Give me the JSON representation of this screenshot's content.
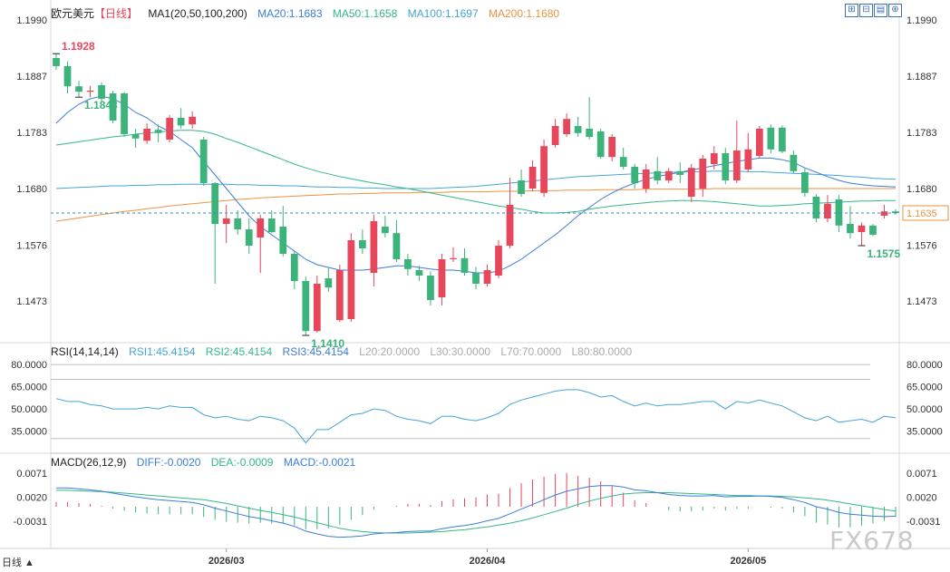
{
  "header": {
    "symbol": "欧元美元",
    "period": "【日线】",
    "ma_label": "MA1(20,50,100,200)",
    "ma20": "MA20:1.1683",
    "ma50": "MA50:1.1658",
    "ma100": "MA100:1.1697",
    "ma200": "MA200:1.1680"
  },
  "rsi_header": {
    "label": "RSI(14,14,14)",
    "rsi1": "RSI1:45.4154",
    "rsi2": "RSI2:45.4154",
    "rsi3": "RSI3:45.4154",
    "l20": "L20:20.0000",
    "l30": "L30:30.0000",
    "l70": "L70:70.0000",
    "l80": "L80:80.0000"
  },
  "macd_header": {
    "label": "MACD(26,12,9)",
    "diff": "DIFF:-0.0020",
    "dea": "DEA:-0.0009",
    "macd": "MACD:-0.0021"
  },
  "toolbar_icons": [
    "zoom-in-icon",
    "zoom-out-icon",
    "chart-type-icon",
    "expand-icon"
  ],
  "footer": {
    "period_selector": "日线 ▲",
    "watermark": "FX678"
  },
  "colors": {
    "up": "#e8465a",
    "down": "#3cb37b",
    "ma20": "#3b7dd8",
    "ma50": "#33b888",
    "ma100": "#45a5d6",
    "ma200": "#ee9240",
    "rsi": "#45a5d6",
    "macd_diff": "#3b7dd8",
    "macd_dea": "#33b888"
  },
  "chart_data": {
    "type": "candlestick",
    "price_axis": {
      "ticks": [
        "1.1990",
        "1.1887",
        "1.1783",
        "1.1680",
        "1.1576",
        "1.1473"
      ],
      "range": [
        1.14,
        1.199
      ]
    },
    "current_price": "1.1635",
    "annotations": [
      {
        "text": "1.1928",
        "value": 1.1928
      },
      {
        "text": "1.1410",
        "value": 1.141
      },
      {
        "text": "1.1848",
        "value": 1.1848
      },
      {
        "text": "1.1575",
        "value": 1.1575
      }
    ],
    "x_labels": [
      "2026/03",
      "2026/04",
      "2026/05"
    ],
    "x_label_index": [
      15,
      38,
      61
    ],
    "candles": [
      {
        "o": 1.192,
        "h": 1.1928,
        "l": 1.1898,
        "c": 1.1905
      },
      {
        "o": 1.1905,
        "h": 1.1914,
        "l": 1.1855,
        "c": 1.1868
      },
      {
        "o": 1.1868,
        "h": 1.1878,
        "l": 1.1848,
        "c": 1.1858
      },
      {
        "o": 1.1858,
        "h": 1.1869,
        "l": 1.1848,
        "c": 1.186
      },
      {
        "o": 1.187,
        "h": 1.1875,
        "l": 1.184,
        "c": 1.1845
      },
      {
        "o": 1.1855,
        "h": 1.186,
        "l": 1.18,
        "c": 1.1805
      },
      {
        "o": 1.1855,
        "h": 1.1857,
        "l": 1.1775,
        "c": 1.178
      },
      {
        "o": 1.178,
        "h": 1.179,
        "l": 1.1755,
        "c": 1.1772
      },
      {
        "o": 1.1768,
        "h": 1.18,
        "l": 1.1762,
        "c": 1.179
      },
      {
        "o": 1.1788,
        "h": 1.1798,
        "l": 1.1765,
        "c": 1.1782
      },
      {
        "o": 1.177,
        "h": 1.1815,
        "l": 1.1765,
        "c": 1.181
      },
      {
        "o": 1.181,
        "h": 1.1828,
        "l": 1.179,
        "c": 1.1796
      },
      {
        "o": 1.1798,
        "h": 1.1822,
        "l": 1.179,
        "c": 1.1812
      },
      {
        "o": 1.177,
        "h": 1.1775,
        "l": 1.1685,
        "c": 1.169
      },
      {
        "o": 1.169,
        "h": 1.1692,
        "l": 1.1505,
        "c": 1.1615
      },
      {
        "o": 1.1615,
        "h": 1.165,
        "l": 1.158,
        "c": 1.1625
      },
      {
        "o": 1.1625,
        "h": 1.164,
        "l": 1.1595,
        "c": 1.1605
      },
      {
        "o": 1.1605,
        "h": 1.1625,
        "l": 1.156,
        "c": 1.1575
      },
      {
        "o": 1.159,
        "h": 1.1632,
        "l": 1.1525,
        "c": 1.1625
      },
      {
        "o": 1.1625,
        "h": 1.164,
        "l": 1.1598,
        "c": 1.16
      },
      {
        "o": 1.161,
        "h": 1.1648,
        "l": 1.1555,
        "c": 1.156
      },
      {
        "o": 1.156,
        "h": 1.1565,
        "l": 1.1495,
        "c": 1.151
      },
      {
        "o": 1.151,
        "h": 1.1518,
        "l": 1.141,
        "c": 1.1418
      },
      {
        "o": 1.1418,
        "h": 1.152,
        "l": 1.1415,
        "c": 1.1505
      },
      {
        "o": 1.1515,
        "h": 1.1535,
        "l": 1.149,
        "c": 1.1498
      },
      {
        "o": 1.1438,
        "h": 1.154,
        "l": 1.1435,
        "c": 1.153
      },
      {
        "o": 1.144,
        "h": 1.1598,
        "l": 1.1435,
        "c": 1.1585
      },
      {
        "o": 1.1585,
        "h": 1.1605,
        "l": 1.156,
        "c": 1.157
      },
      {
        "o": 1.1525,
        "h": 1.1632,
        "l": 1.15,
        "c": 1.162
      },
      {
        "o": 1.161,
        "h": 1.163,
        "l": 1.159,
        "c": 1.1598
      },
      {
        "o": 1.1598,
        "h": 1.1622,
        "l": 1.1545,
        "c": 1.155
      },
      {
        "o": 1.155,
        "h": 1.156,
        "l": 1.152,
        "c": 1.1532
      },
      {
        "o": 1.153,
        "h": 1.1538,
        "l": 1.151,
        "c": 1.152
      },
      {
        "o": 1.152,
        "h": 1.1528,
        "l": 1.1465,
        "c": 1.1475
      },
      {
        "o": 1.148,
        "h": 1.156,
        "l": 1.1465,
        "c": 1.155
      },
      {
        "o": 1.155,
        "h": 1.1572,
        "l": 1.1545,
        "c": 1.1552
      },
      {
        "o": 1.1552,
        "h": 1.157,
        "l": 1.152,
        "c": 1.1525
      },
      {
        "o": 1.1525,
        "h": 1.1536,
        "l": 1.1495,
        "c": 1.1505
      },
      {
        "o": 1.1505,
        "h": 1.154,
        "l": 1.15,
        "c": 1.153
      },
      {
        "o": 1.152,
        "h": 1.1585,
        "l": 1.1515,
        "c": 1.1575
      },
      {
        "o": 1.1575,
        "h": 1.17,
        "l": 1.157,
        "c": 1.165
      },
      {
        "o": 1.1695,
        "h": 1.1715,
        "l": 1.1665,
        "c": 1.167
      },
      {
        "o": 1.168,
        "h": 1.1732,
        "l": 1.1675,
        "c": 1.172
      },
      {
        "o": 1.1672,
        "h": 1.177,
        "l": 1.1665,
        "c": 1.1758
      },
      {
        "o": 1.176,
        "h": 1.1808,
        "l": 1.1755,
        "c": 1.1795
      },
      {
        "o": 1.178,
        "h": 1.1818,
        "l": 1.1775,
        "c": 1.1808
      },
      {
        "o": 1.1795,
        "h": 1.1812,
        "l": 1.1775,
        "c": 1.1782
      },
      {
        "o": 1.179,
        "h": 1.1848,
        "l": 1.177,
        "c": 1.1775
      },
      {
        "o": 1.1785,
        "h": 1.179,
        "l": 1.1735,
        "c": 1.1738
      },
      {
        "o": 1.1738,
        "h": 1.178,
        "l": 1.173,
        "c": 1.1775
      },
      {
        "o": 1.1738,
        "h": 1.1755,
        "l": 1.1715,
        "c": 1.172
      },
      {
        "o": 1.172,
        "h": 1.1725,
        "l": 1.168,
        "c": 1.169
      },
      {
        "o": 1.168,
        "h": 1.1725,
        "l": 1.1672,
        "c": 1.1715
      },
      {
        "o": 1.1712,
        "h": 1.1738,
        "l": 1.1688,
        "c": 1.1695
      },
      {
        "o": 1.1695,
        "h": 1.1718,
        "l": 1.169,
        "c": 1.1712
      },
      {
        "o": 1.1712,
        "h": 1.1728,
        "l": 1.169,
        "c": 1.1705
      },
      {
        "o": 1.1665,
        "h": 1.1725,
        "l": 1.1655,
        "c": 1.1718
      },
      {
        "o": 1.168,
        "h": 1.1742,
        "l": 1.1665,
        "c": 1.1735
      },
      {
        "o": 1.1725,
        "h": 1.1758,
        "l": 1.1715,
        "c": 1.1745
      },
      {
        "o": 1.1745,
        "h": 1.1755,
        "l": 1.1688,
        "c": 1.1695
      },
      {
        "o": 1.1695,
        "h": 1.1805,
        "l": 1.169,
        "c": 1.175
      },
      {
        "o": 1.1715,
        "h": 1.1782,
        "l": 1.171,
        "c": 1.1752
      },
      {
        "o": 1.174,
        "h": 1.1795,
        "l": 1.1735,
        "c": 1.179
      },
      {
        "o": 1.1792,
        "h": 1.1798,
        "l": 1.1745,
        "c": 1.1752
      },
      {
        "o": 1.1792,
        "h": 1.1796,
        "l": 1.1745,
        "c": 1.1748
      },
      {
        "o": 1.1742,
        "h": 1.175,
        "l": 1.1708,
        "c": 1.1712
      },
      {
        "o": 1.171,
        "h": 1.1718,
        "l": 1.1665,
        "c": 1.1672
      },
      {
        "o": 1.1665,
        "h": 1.167,
        "l": 1.1618,
        "c": 1.1625
      },
      {
        "o": 1.1625,
        "h": 1.1668,
        "l": 1.1618,
        "c": 1.1652
      },
      {
        "o": 1.166,
        "h": 1.1668,
        "l": 1.16,
        "c": 1.1612
      },
      {
        "o": 1.1615,
        "h": 1.1648,
        "l": 1.1588,
        "c": 1.1598
      },
      {
        "o": 1.16,
        "h": 1.1618,
        "l": 1.1575,
        "c": 1.1612
      },
      {
        "o": 1.1612,
        "h": 1.1615,
        "l": 1.1592,
        "c": 1.1595
      },
      {
        "o": 1.163,
        "h": 1.165,
        "l": 1.1625,
        "c": 1.1638
      },
      {
        "o": 1.1638,
        "h": 1.1642,
        "l": 1.1632,
        "c": 1.1635
      }
    ],
    "ma20": [
      1.18,
      1.182,
      1.1835,
      1.1845,
      1.185,
      1.1845,
      1.1835,
      1.182,
      1.181,
      1.1795,
      1.1785,
      1.177,
      1.1755,
      1.173,
      1.1705,
      1.168,
      1.1655,
      1.163,
      1.161,
      1.1595,
      1.158,
      1.1565,
      1.155,
      1.154,
      1.1535,
      1.153,
      1.153,
      1.153,
      1.1532,
      1.1535,
      1.1538,
      1.1538,
      1.1535,
      1.1532,
      1.153,
      1.153,
      1.1528,
      1.1525,
      1.1525,
      1.1528,
      1.1538,
      1.155,
      1.1565,
      1.158,
      1.1595,
      1.1612,
      1.163,
      1.1645,
      1.166,
      1.1672,
      1.1682,
      1.169,
      1.1697,
      1.1702,
      1.1706,
      1.171,
      1.1714,
      1.1718,
      1.1722,
      1.1726,
      1.173,
      1.1733,
      1.1736,
      1.1736,
      1.1733,
      1.1728,
      1.1718,
      1.171,
      1.1702,
      1.1695,
      1.169,
      1.1687,
      1.1685,
      1.1684,
      1.1683
    ],
    "ma50": [
      1.176,
      1.1763,
      1.1766,
      1.1769,
      1.1772,
      1.1775,
      1.1777,
      1.178,
      1.1782,
      1.1784,
      1.1786,
      1.1787,
      1.1787,
      1.1785,
      1.178,
      1.1772,
      1.1765,
      1.1757,
      1.1749,
      1.1741,
      1.1733,
      1.1725,
      1.1718,
      1.1712,
      1.1707,
      1.1702,
      1.1698,
      1.1694,
      1.169,
      1.1687,
      1.1683,
      1.168,
      1.1676,
      1.1672,
      1.1668,
      1.1664,
      1.166,
      1.1656,
      1.1652,
      1.1648,
      1.1645,
      1.1642,
      1.1638,
      1.1635,
      1.1635,
      1.1636,
      1.1638,
      1.1642,
      1.1645,
      1.1648,
      1.165,
      1.1652,
      1.1654,
      1.1656,
      1.1657,
      1.1658,
      1.1658,
      1.1657,
      1.1656,
      1.1654,
      1.1652,
      1.165,
      1.1648,
      1.1648,
      1.1649,
      1.165,
      1.1652,
      1.1653,
      1.1654,
      1.1655,
      1.1656,
      1.1657,
      1.1657,
      1.1658,
      1.1658
    ],
    "ma100": [
      1.168,
      1.1681,
      1.1682,
      1.1683,
      1.1684,
      1.1685,
      1.1685,
      1.1686,
      1.1686,
      1.1687,
      1.1687,
      1.1688,
      1.1688,
      1.1688,
      1.1688,
      1.1688,
      1.1687,
      1.1687,
      1.1686,
      1.1686,
      1.1685,
      1.1685,
      1.1684,
      1.1683,
      1.1683,
      1.1682,
      1.1682,
      1.1681,
      1.1681,
      1.168,
      1.168,
      1.168,
      1.168,
      1.168,
      1.1681,
      1.1682,
      1.1683,
      1.1684,
      1.1686,
      1.1688,
      1.169,
      1.1692,
      1.1694,
      1.1696,
      1.1698,
      1.17,
      1.1702,
      1.1703,
      1.1704,
      1.1705,
      1.1706,
      1.1707,
      1.1708,
      1.1709,
      1.171,
      1.171,
      1.1711,
      1.1711,
      1.1712,
      1.1712,
      1.1712,
      1.1711,
      1.1711,
      1.171,
      1.1709,
      1.1708,
      1.1707,
      1.1706,
      1.1705,
      1.1704,
      1.1702,
      1.1701,
      1.1699,
      1.1698,
      1.1697
    ],
    "ma200": [
      1.162,
      1.1623,
      1.1626,
      1.1629,
      1.1632,
      1.1635,
      1.1638,
      1.164,
      1.1643,
      1.1645,
      1.1648,
      1.165,
      1.1652,
      1.1654,
      1.1656,
      1.1658,
      1.166,
      1.1661,
      1.1663,
      1.1664,
      1.1665,
      1.1666,
      1.1667,
      1.1668,
      1.1669,
      1.167,
      1.167,
      1.1671,
      1.1671,
      1.1672,
      1.1672,
      1.1672,
      1.1673,
      1.1673,
      1.1673,
      1.1674,
      1.1674,
      1.1674,
      1.1674,
      1.1675,
      1.1675,
      1.1675,
      1.1676,
      1.1676,
      1.1676,
      1.1677,
      1.1677,
      1.1677,
      1.1678,
      1.1678,
      1.1678,
      1.1678,
      1.1679,
      1.1679,
      1.1679,
      1.1679,
      1.1679,
      1.1679,
      1.168,
      1.168,
      1.168,
      1.168,
      1.168,
      1.168,
      1.168,
      1.168,
      1.168,
      1.168,
      1.168,
      1.168,
      1.168,
      1.168,
      1.168,
      1.168,
      1.168
    ],
    "rsi": {
      "ticks": [
        "80.0000",
        "65.0000",
        "50.0000",
        "35.0000"
      ],
      "range": [
        20,
        85
      ],
      "lines": [
        80,
        70,
        30,
        20
      ],
      "values": [
        57,
        55,
        55,
        53,
        52,
        50,
        50,
        50,
        51,
        50,
        52,
        51,
        51,
        46,
        44,
        45,
        43,
        42,
        45,
        44,
        42,
        37,
        27,
        36,
        36,
        41,
        46,
        47,
        50,
        49,
        45,
        43,
        42,
        40,
        45,
        45,
        43,
        42,
        44,
        47,
        53,
        56,
        58,
        60,
        62,
        63,
        63,
        61,
        58,
        59,
        55,
        52,
        54,
        52,
        53,
        53,
        54,
        55,
        55,
        50,
        55,
        54,
        56,
        54,
        52,
        48,
        44,
        42,
        45,
        41,
        42,
        43,
        41,
        45,
        44
      ]
    },
    "macd": {
      "ticks": [
        "0.0071",
        "0.0020",
        "-0.0031"
      ],
      "range": [
        -0.0085,
        0.0085
      ],
      "diff": [
        0.004,
        0.004,
        0.0038,
        0.0036,
        0.0033,
        0.0029,
        0.0025,
        0.0021,
        0.0018,
        0.0015,
        0.0013,
        0.0011,
        0.0009,
        0.0004,
        -0.0003,
        -0.0009,
        -0.0015,
        -0.0021,
        -0.0025,
        -0.003,
        -0.0035,
        -0.0042,
        -0.0052,
        -0.0058,
        -0.0063,
        -0.0065,
        -0.0064,
        -0.0062,
        -0.0058,
        -0.0056,
        -0.0055,
        -0.0053,
        -0.0052,
        -0.0052,
        -0.0047,
        -0.0043,
        -0.004,
        -0.0036,
        -0.003,
        -0.0025,
        -0.0015,
        -0.0005,
        0.0005,
        0.0015,
        0.0025,
        0.0033,
        0.0038,
        0.0043,
        0.0045,
        0.0045,
        0.0042,
        0.0036,
        0.0034,
        0.003,
        0.0026,
        0.0024,
        0.0023,
        0.0023,
        0.0024,
        0.0021,
        0.0022,
        0.0022,
        0.0023,
        0.0022,
        0.002,
        0.0015,
        0.0009,
        0.0,
        -0.0005,
        -0.0012,
        -0.0016,
        -0.0018,
        -0.002,
        -0.0021,
        -0.002
      ],
      "dea": [
        0.0035,
        0.0035,
        0.0034,
        0.0033,
        0.0032,
        0.0031,
        0.0029,
        0.0027,
        0.0025,
        0.0023,
        0.0021,
        0.0019,
        0.0017,
        0.0015,
        0.0011,
        0.0007,
        0.0002,
        -0.0003,
        -0.0008,
        -0.0012,
        -0.0017,
        -0.0022,
        -0.0028,
        -0.0034,
        -0.004,
        -0.0046,
        -0.005,
        -0.0053,
        -0.0055,
        -0.0056,
        -0.0056,
        -0.0056,
        -0.0055,
        -0.0054,
        -0.0053,
        -0.0051,
        -0.0049,
        -0.0046,
        -0.0043,
        -0.0039,
        -0.0035,
        -0.003,
        -0.0024,
        -0.0017,
        -0.001,
        -0.0003,
        0.0005,
        0.0012,
        0.0018,
        0.0023,
        0.0027,
        0.0029,
        0.003,
        0.003,
        0.003,
        0.0029,
        0.0028,
        0.0027,
        0.0026,
        0.0025,
        0.0024,
        0.0024,
        0.0023,
        0.0023,
        0.0022,
        0.0021,
        0.0019,
        0.0017,
        0.0014,
        0.001,
        0.0006,
        0.0002,
        -0.0002,
        -0.0006,
        -0.0009
      ],
      "hist_scale_note": ""
    }
  }
}
